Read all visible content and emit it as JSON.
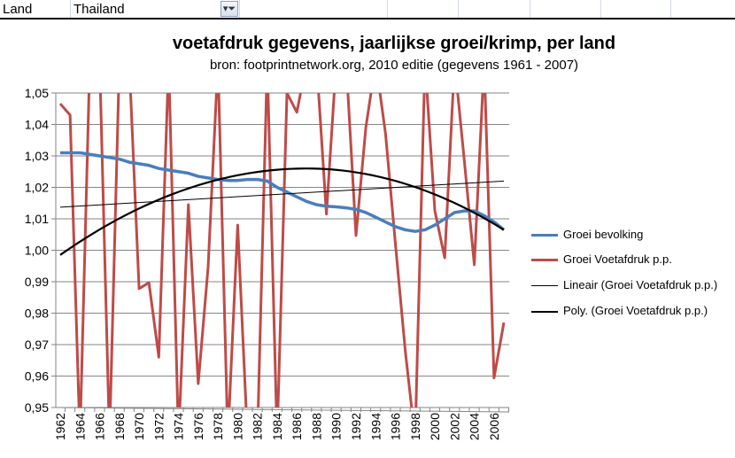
{
  "sheet": {
    "label_cell": "Land",
    "value_cell": "Thailand",
    "filter_icon": "filter-dropdown-icon"
  },
  "chart_data": {
    "type": "line",
    "title": "voetafdruk gegevens, jaarlijkse groei/krimp, per land",
    "subtitle": "bron: footprintnetwork.org, 2010 editie (gegevens 1961 - 2007)",
    "xlabel": "",
    "ylabel": "",
    "ylim": [
      0.95,
      1.05
    ],
    "yticks": [
      "0,95",
      "0,96",
      "0,97",
      "0,98",
      "0,99",
      "1,00",
      "1,01",
      "1,02",
      "1,03",
      "1,04",
      "1,05"
    ],
    "x": [
      1962,
      1963,
      1964,
      1965,
      1966,
      1967,
      1968,
      1969,
      1970,
      1971,
      1972,
      1973,
      1974,
      1975,
      1976,
      1977,
      1978,
      1979,
      1980,
      1981,
      1982,
      1983,
      1984,
      1985,
      1986,
      1987,
      1988,
      1989,
      1990,
      1991,
      1992,
      1993,
      1994,
      1995,
      1996,
      1997,
      1998,
      1999,
      2000,
      2001,
      2002,
      2003,
      2004,
      2005,
      2006,
      2007
    ],
    "xtick_labels": [
      "1962",
      "1964",
      "1966",
      "1968",
      "1970",
      "1972",
      "1974",
      "1976",
      "1978",
      "1980",
      "1982",
      "1984",
      "1986",
      "1988",
      "1990",
      "1992",
      "1994",
      "1996",
      "1998",
      "2000",
      "2002",
      "2004",
      "2006"
    ],
    "grid": "horizontal",
    "legend_position": "right",
    "series": [
      {
        "name": "Groei bevolking",
        "color": "#4a7ebb",
        "values": [
          1.031,
          1.031,
          1.031,
          1.0305,
          1.03,
          1.0295,
          1.029,
          1.028,
          1.0275,
          1.027,
          1.026,
          1.0255,
          1.025,
          1.0245,
          1.0235,
          1.023,
          1.0225,
          1.0222,
          1.0222,
          1.0225,
          1.0225,
          1.022,
          1.02,
          1.0185,
          1.017,
          1.0155,
          1.0145,
          1.014,
          1.0138,
          1.0135,
          1.013,
          1.012,
          1.0105,
          1.009,
          1.0075,
          1.0065,
          1.006,
          1.0065,
          1.008,
          1.01,
          1.012,
          1.0125,
          1.0125,
          1.011,
          1.009,
          1.0065
        ]
      },
      {
        "name": "Groei Voetafdruk p.p.",
        "color": "#be4b48",
        "values": [
          1.0466,
          1.043,
          0.94,
          1.06,
          1.06,
          0.94,
          1.06,
          1.06,
          0.9878,
          0.9897,
          0.966,
          1.06,
          0.94,
          1.0145,
          0.9576,
          0.9946,
          1.06,
          0.94,
          1.008,
          0.94,
          0.94,
          1.06,
          0.94,
          1.05,
          1.0439,
          1.06,
          1.06,
          1.0115,
          1.06,
          1.06,
          1.0047,
          1.039,
          1.06,
          1.037,
          1.002,
          0.968,
          0.94,
          1.06,
          1.0125,
          0.9976,
          1.06,
          1.0281,
          0.9954,
          1.06,
          0.9594,
          0.977
        ]
      },
      {
        "name": "Lineair (Groei Voetafdruk p.p.)",
        "color": "#000000",
        "trend": "linear",
        "start": [
          1962,
          1.0137
        ],
        "end": [
          2007,
          1.022
        ]
      },
      {
        "name": "Poly. (Groei Voetafdruk p.p.)",
        "color": "#000000",
        "trend": "polynomial",
        "vertex": [
          1987,
          1.026
        ],
        "start": [
          1962,
          0.9985
        ],
        "end": [
          2007,
          1.0065
        ]
      }
    ]
  }
}
